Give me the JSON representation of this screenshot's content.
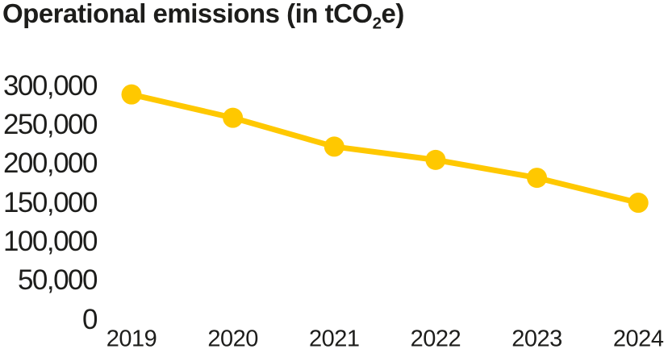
{
  "title": {
    "prefix": "Operational emissions (in tCO",
    "subscript": "2",
    "suffix": "e)"
  },
  "colors": {
    "accent": "#FFC800",
    "text": "#1D1D1B",
    "background": "#FFFFFF"
  },
  "chart_data": {
    "type": "line",
    "title": "Operational emissions (in tCO2e)",
    "categories": [
      "2019",
      "2020",
      "2021",
      "2022",
      "2023",
      "2024"
    ],
    "series": [
      {
        "name": "Operational emissions",
        "values": [
          290000,
          260000,
          223000,
          206000,
          183000,
          151000
        ]
      }
    ],
    "xlabel": "",
    "ylabel": "",
    "ylim": [
      0,
      300000
    ],
    "ytick_step": 50000,
    "ytick_labels": [
      "0",
      "50,000",
      "100,000",
      "150,000",
      "200,000",
      "250,000",
      "300,000"
    ],
    "grid": false,
    "legend_position": "none",
    "marker": "circle",
    "line_color": "#FFC800"
  }
}
